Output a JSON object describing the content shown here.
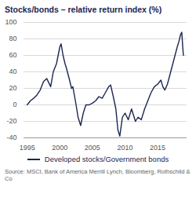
{
  "chart_data": {
    "type": "line",
    "title": "Stocks/bonds – relative return index (%)",
    "source": "Source: MSCI, Bank of America Merrill Lynch, Bloomberg, Rothschild & Co",
    "x": [
      1995.0,
      1995.5,
      1996.0,
      1996.5,
      1997.0,
      1997.5,
      1998.0,
      1998.6,
      1999.0,
      1999.5,
      2000.0,
      2000.2,
      2000.5,
      2000.8,
      2001.0,
      2001.5,
      2001.8,
      2002.0,
      2002.5,
      2002.8,
      2003.0,
      2003.2,
      2003.6,
      2004.0,
      2004.5,
      2005.0,
      2005.5,
      2006.0,
      2006.5,
      2007.0,
      2007.5,
      2007.8,
      2008.2,
      2008.6,
      2008.9,
      2009.2,
      2009.6,
      2010.0,
      2010.5,
      2011.0,
      2011.6,
      2012.0,
      2012.5,
      2013.0,
      2013.5,
      2014.0,
      2014.5,
      2015.0,
      2015.5,
      2015.8,
      2016.1,
      2016.5,
      2017.0,
      2017.5,
      2018.0,
      2018.3,
      2018.5,
      2018.7,
      2018.85,
      2018.95
    ],
    "series": [
      {
        "name": "Developed stocks/Government bonds",
        "color": "#1c2652",
        "values": [
          0,
          5,
          8,
          12,
          18,
          28,
          32,
          22,
          40,
          50,
          70,
          74,
          60,
          50,
          45,
          30,
          20,
          22,
          0,
          -15,
          -20,
          -25,
          -10,
          0,
          0,
          2,
          5,
          10,
          8,
          15,
          22,
          24,
          10,
          -5,
          -30,
          -38,
          -15,
          -10,
          -18,
          -5,
          -20,
          -15,
          -18,
          -5,
          5,
          15,
          22,
          25,
          30,
          22,
          18,
          25,
          40,
          55,
          70,
          78,
          85,
          88,
          70,
          60
        ]
      }
    ],
    "xlim": [
      1994.5,
      2019.5
    ],
    "xticks": [
      1995,
      2000,
      2005,
      2010,
      2015
    ],
    "ylim": [
      -40,
      100
    ],
    "yticks": [
      -40,
      -20,
      0,
      20,
      40,
      60,
      80,
      100
    ],
    "grid": true,
    "legend": "bottom"
  }
}
